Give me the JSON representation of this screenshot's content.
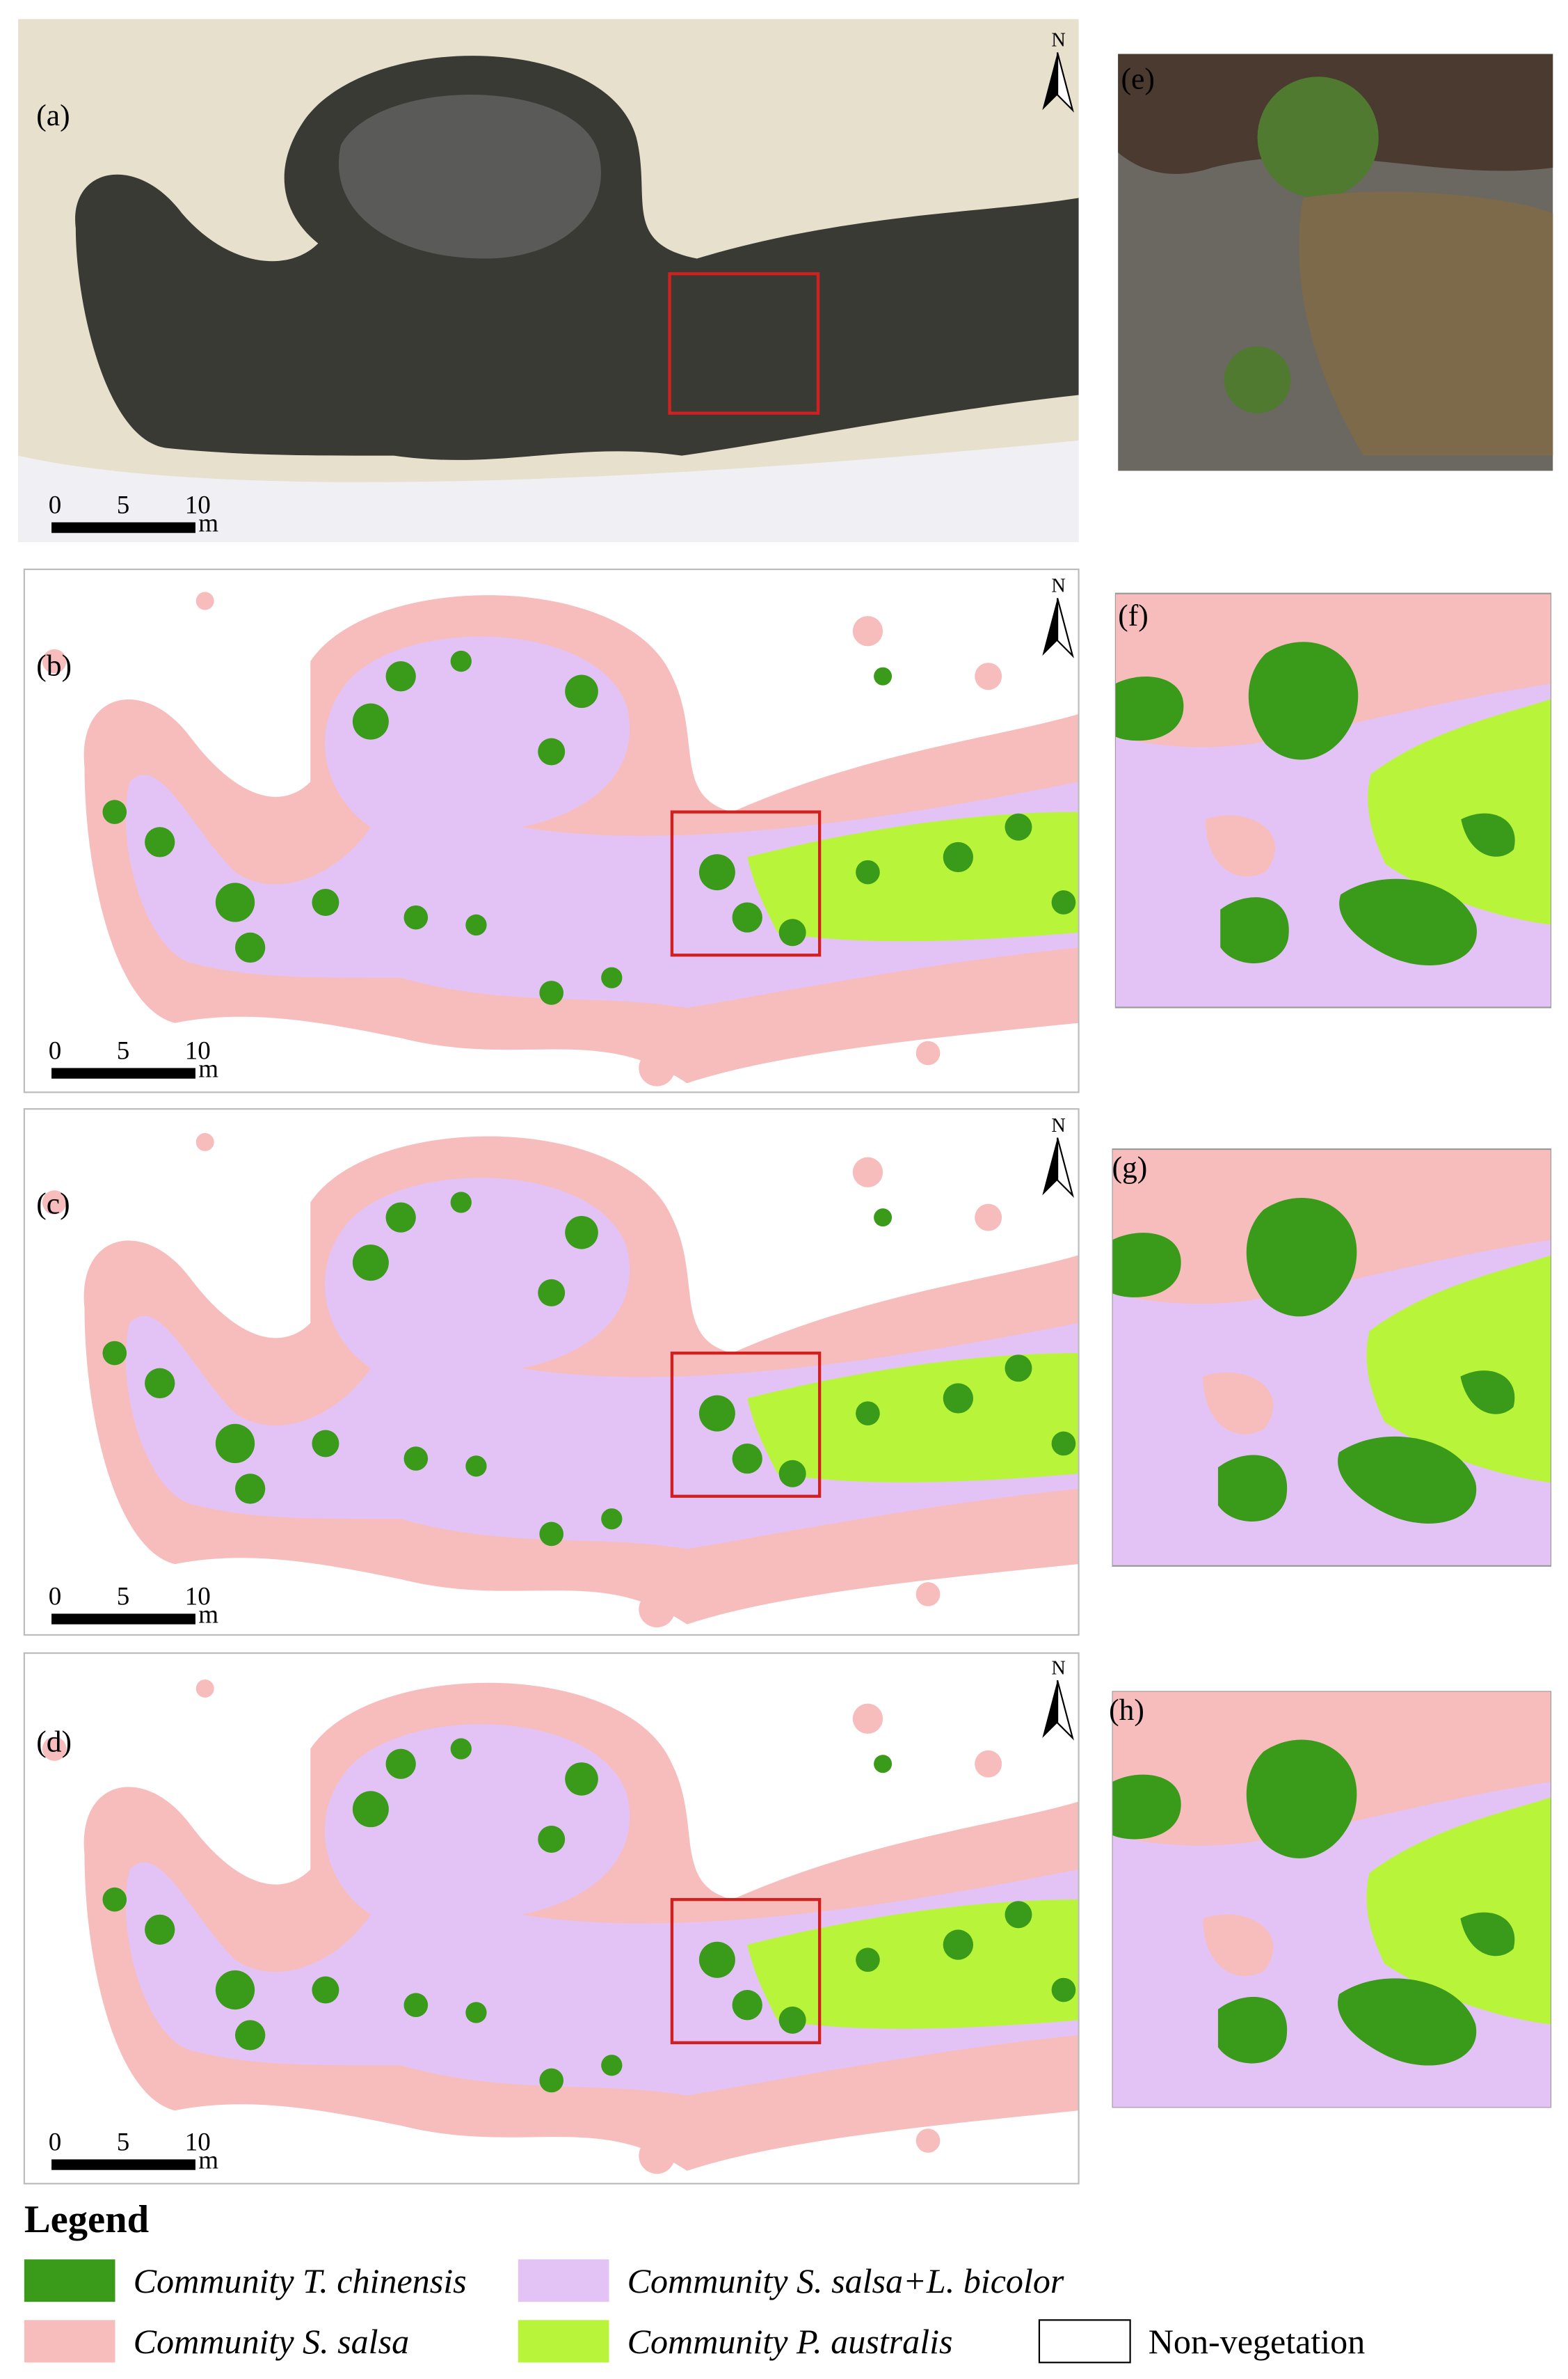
{
  "panels": [
    "(a)",
    "(b)",
    "(c)",
    "(d)",
    "(e)",
    "(f)",
    "(g)",
    "(h)"
  ],
  "scale_bar": {
    "ticks": [
      "0",
      "5",
      "10"
    ],
    "unit": "m"
  },
  "north": "N",
  "legend": {
    "title": "Legend",
    "items": [
      {
        "label": "Community T. chinensis",
        "color": "#3a9a1a",
        "italic": true
      },
      {
        "label": "Community S. salsa+L. bicolor",
        "color": "#e3c3f5",
        "italic": true
      },
      {
        "label": "Community S. salsa",
        "color": "#f7bdbd",
        "italic": true
      },
      {
        "label": "Community P. australis",
        "color": "#b8f53a",
        "italic": true
      },
      {
        "label": "Non-vegetation",
        "color": "#ffffff",
        "italic": false
      }
    ]
  }
}
